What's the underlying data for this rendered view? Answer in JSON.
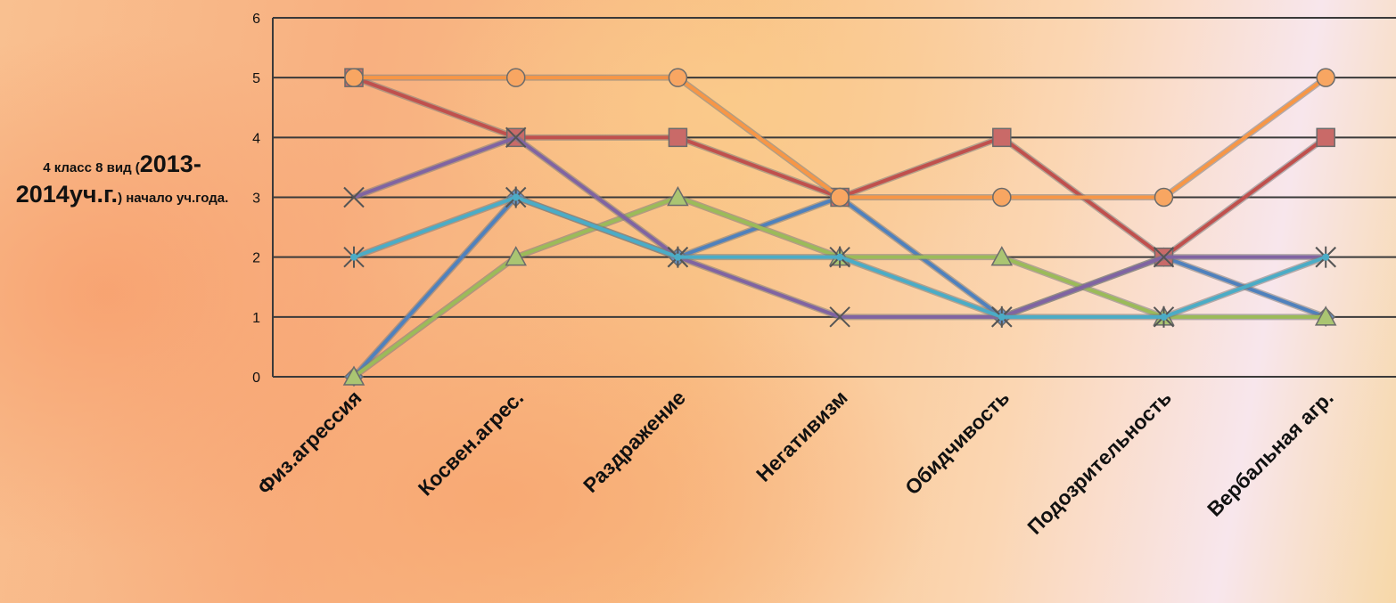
{
  "chart_data": {
    "type": "line",
    "ylabel": {
      "part1": "4 класс 8 вид (",
      "part2": "2013-2014уч.г.",
      "part3": ") начало уч.года."
    },
    "ylim": [
      0,
      6
    ],
    "yticks": [
      0,
      1,
      2,
      3,
      4,
      5,
      6
    ],
    "categories": [
      "Физ.агрессия",
      "Косвен.агрес.",
      "Раздражение",
      "Негативизм",
      "Обидчивость",
      "Подозрительность",
      "Вербальная агр."
    ],
    "grid": true,
    "series": [
      {
        "values": [
          0,
          3,
          2,
          3,
          1,
          2,
          1
        ],
        "marker": "diamond",
        "color": "#4f81bd"
      },
      {
        "values": [
          5,
          4,
          4,
          3,
          4,
          2,
          4
        ],
        "marker": "square",
        "color": "#c0504d"
      },
      {
        "values": [
          0,
          2,
          3,
          2,
          2,
          1,
          1
        ],
        "marker": "triangle",
        "color": "#9bbb59"
      },
      {
        "values": [
          3,
          4,
          2,
          1,
          1,
          2,
          2
        ],
        "marker": "x",
        "color": "#8064a2"
      },
      {
        "values": [
          2,
          3,
          2,
          2,
          1,
          1,
          2
        ],
        "marker": "star",
        "color": "#4bacc6"
      },
      {
        "values": [
          5,
          5,
          5,
          3,
          3,
          3,
          5
        ],
        "marker": "circle",
        "color": "#f79646"
      }
    ]
  }
}
